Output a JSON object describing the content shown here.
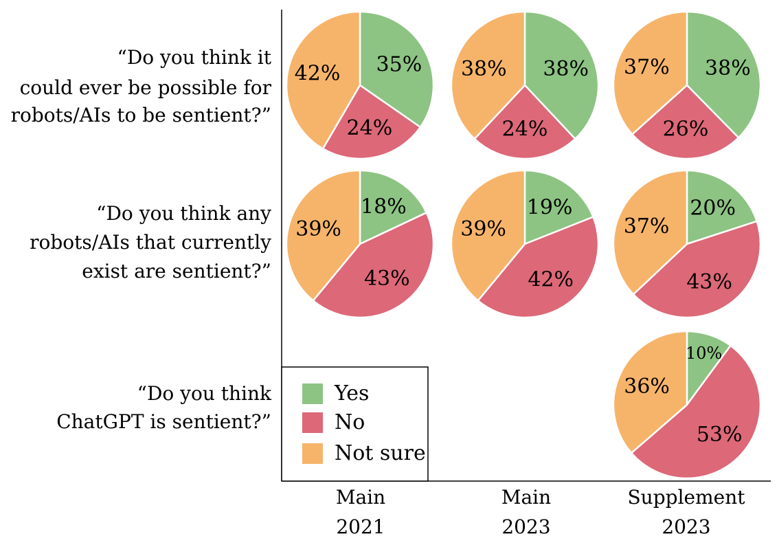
{
  "chart_data": {
    "type": "pie",
    "colors": {
      "Yes": "#8dc383",
      "No": "#dc6878",
      "Not sure": "#f6b46a"
    },
    "legend": {
      "placement": "bottom-left",
      "entries": [
        {
          "key": "Yes",
          "label": "Yes"
        },
        {
          "key": "No",
          "label": "No"
        },
        {
          "key": "Not sure",
          "label": "Not sure"
        }
      ]
    },
    "columns": [
      {
        "label_line1": "Main",
        "label_line2": "2021"
      },
      {
        "label_line1": "Main",
        "label_line2": "2023"
      },
      {
        "label_line1": "Supplement",
        "label_line2": "2023"
      }
    ],
    "rows": [
      {
        "question_lines": [
          "“Do you think it",
          "could ever be possible for",
          "robots/AIs to be sentient?”"
        ]
      },
      {
        "question_lines": [
          "“Do you think any",
          "robots/AIs that currently",
          "exist are sentient?”"
        ]
      },
      {
        "question_lines": [
          "“Do you think",
          "ChatGPT is sentient?”"
        ]
      }
    ],
    "pies": [
      {
        "row": 0,
        "col": 0,
        "slices": [
          {
            "key": "Yes",
            "value": 35,
            "label": "35%"
          },
          {
            "key": "No",
            "value": 24,
            "label": "24%"
          },
          {
            "key": "Not sure",
            "value": 42,
            "label": "42%"
          }
        ]
      },
      {
        "row": 0,
        "col": 1,
        "slices": [
          {
            "key": "Yes",
            "value": 38,
            "label": "38%"
          },
          {
            "key": "No",
            "value": 24,
            "label": "24%"
          },
          {
            "key": "Not sure",
            "value": 38,
            "label": "38%"
          }
        ]
      },
      {
        "row": 0,
        "col": 2,
        "slices": [
          {
            "key": "Yes",
            "value": 38,
            "label": "38%"
          },
          {
            "key": "No",
            "value": 26,
            "label": "26%"
          },
          {
            "key": "Not sure",
            "value": 37,
            "label": "37%"
          }
        ]
      },
      {
        "row": 1,
        "col": 0,
        "slices": [
          {
            "key": "Yes",
            "value": 18,
            "label": "18%"
          },
          {
            "key": "No",
            "value": 43,
            "label": "43%"
          },
          {
            "key": "Not sure",
            "value": 39,
            "label": "39%"
          }
        ]
      },
      {
        "row": 1,
        "col": 1,
        "slices": [
          {
            "key": "Yes",
            "value": 19,
            "label": "19%"
          },
          {
            "key": "No",
            "value": 42,
            "label": "42%"
          },
          {
            "key": "Not sure",
            "value": 39,
            "label": "39%"
          }
        ]
      },
      {
        "row": 1,
        "col": 2,
        "slices": [
          {
            "key": "Yes",
            "value": 20,
            "label": "20%"
          },
          {
            "key": "No",
            "value": 43,
            "label": "43%"
          },
          {
            "key": "Not sure",
            "value": 37,
            "label": "37%"
          }
        ]
      },
      {
        "row": 2,
        "col": 2,
        "slices": [
          {
            "key": "Yes",
            "value": 10,
            "label": "10%"
          },
          {
            "key": "No",
            "value": 53,
            "label": "53%"
          },
          {
            "key": "Not sure",
            "value": 36,
            "label": "36%"
          }
        ]
      }
    ]
  }
}
